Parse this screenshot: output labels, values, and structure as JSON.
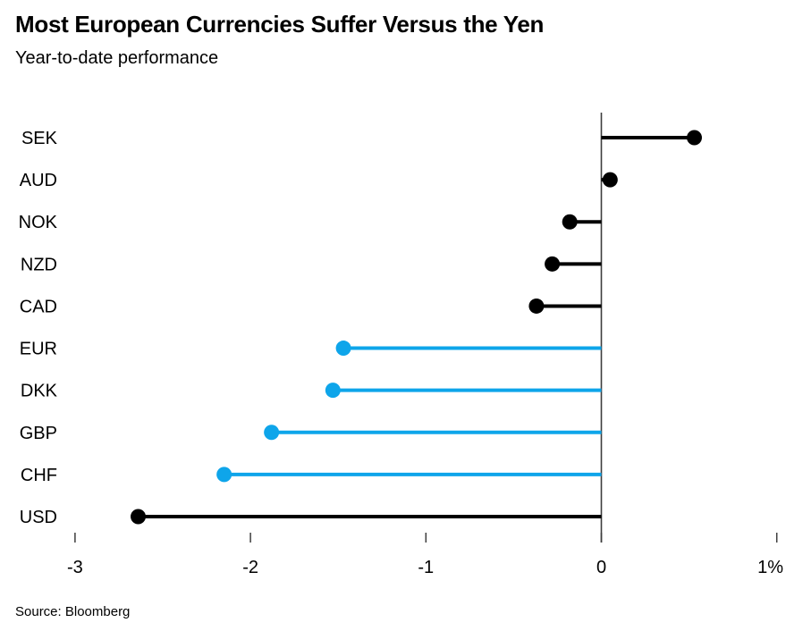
{
  "header": {
    "title": "Most European Currencies Suffer Versus the Yen",
    "subtitle": "Year-to-date performance"
  },
  "footer": {
    "source": "Source: Bloomberg"
  },
  "colors": {
    "black": "#000000",
    "blue": "#0ea5ea",
    "axis": "#3d3d3d",
    "text": "#000000",
    "background": "#ffffff"
  },
  "chart_data": {
    "type": "bar",
    "subtype": "horizontal-lollipop",
    "title": "Most European Currencies Suffer Versus the Yen",
    "subtitle": "Year-to-date performance",
    "categories": [
      "SEK",
      "AUD",
      "NOK",
      "NZD",
      "CAD",
      "EUR",
      "DKK",
      "GBP",
      "CHF",
      "USD"
    ],
    "values": [
      0.53,
      0.05,
      -0.18,
      -0.28,
      -0.37,
      -1.47,
      -1.53,
      -1.88,
      -2.15,
      -2.64
    ],
    "series_colors": [
      "black",
      "black",
      "black",
      "black",
      "black",
      "blue",
      "blue",
      "blue",
      "blue",
      "black"
    ],
    "unit": "%",
    "baseline": 0,
    "xlabel": "",
    "ylabel": "",
    "xlim": [
      -3.3,
      1.05
    ],
    "x_ticks": [
      {
        "value": -3,
        "label": "-3"
      },
      {
        "value": -2,
        "label": "-2"
      },
      {
        "value": -1,
        "label": "-1"
      },
      {
        "value": 0,
        "label": "0"
      },
      {
        "value": 1,
        "label": "1%"
      }
    ],
    "grid": false,
    "legend": false,
    "source": "Source: Bloomberg"
  }
}
